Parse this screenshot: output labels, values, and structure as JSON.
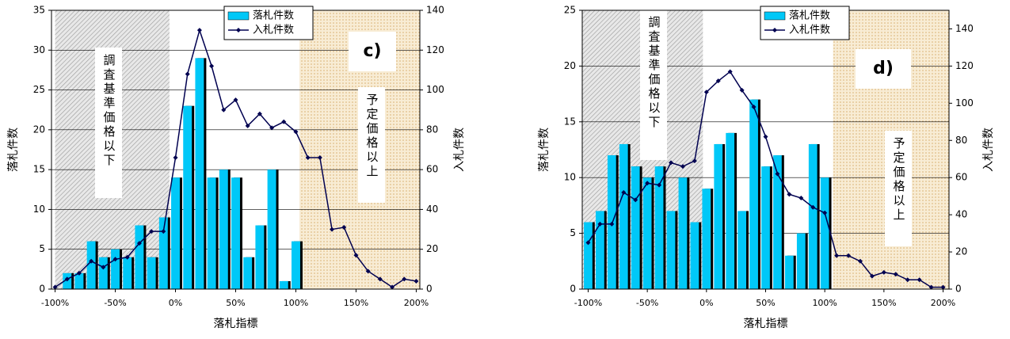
{
  "chart_data": [
    {
      "type": "bar-line",
      "panel_label": "c)",
      "xlabel": "落札指標",
      "ylabel": "落札件数",
      "y2label": "入札件数",
      "x": [
        -100,
        -90,
        -80,
        -70,
        -60,
        -50,
        -40,
        -30,
        -20,
        -10,
        0,
        10,
        20,
        30,
        40,
        50,
        60,
        70,
        80,
        90,
        100,
        110,
        120,
        130,
        140,
        150,
        160,
        170,
        180,
        190,
        200
      ],
      "series": [
        {
          "name": "落札件数",
          "kind": "bar",
          "axis": "y",
          "color": "#00c8f8",
          "values": [
            null,
            2,
            2,
            6,
            4,
            5,
            4,
            8,
            4,
            9,
            14,
            23,
            29,
            14,
            15,
            14,
            4,
            8,
            15,
            1,
            6,
            null,
            null,
            null,
            null,
            null,
            null,
            null,
            null,
            null,
            null
          ]
        },
        {
          "name": "入札件数",
          "kind": "line",
          "axis": "y2",
          "color": "#000050",
          "values": [
            1,
            5,
            8,
            14,
            11,
            15,
            16,
            23,
            29,
            29,
            66,
            108,
            130,
            112,
            90,
            95,
            82,
            88,
            81,
            84,
            79,
            66,
            66,
            30,
            31,
            17,
            9,
            5,
            1,
            5,
            4
          ]
        }
      ],
      "regions": [
        {
          "x": [
            -100,
            -5
          ],
          "label": "調査基準価格以下",
          "pattern": "hatch"
        },
        {
          "x": [
            103,
            203
          ],
          "label": "予定価格以上",
          "pattern": "dots"
        }
      ],
      "xlim": [
        -103,
        203
      ],
      "ylim": [
        0,
        35
      ],
      "y2lim": [
        0,
        140
      ],
      "xticks": [
        {
          "value": -100,
          "label": "-100%"
        },
        {
          "value": -50,
          "label": "-50%"
        },
        {
          "value": 0,
          "label": "0%"
        },
        {
          "value": 50,
          "label": "50%"
        },
        {
          "value": 100,
          "label": "100%"
        },
        {
          "value": 150,
          "label": "150%"
        },
        {
          "value": 200,
          "label": "200%"
        }
      ],
      "yticks": [
        0,
        5,
        10,
        15,
        20,
        25,
        30,
        35
      ],
      "y2ticks": [
        0,
        20,
        40,
        60,
        80,
        100,
        120,
        140
      ],
      "grid": true
    },
    {
      "type": "bar-line",
      "panel_label": "d)",
      "xlabel": "落札指標",
      "ylabel": "落札件数",
      "y2label": "入札件数",
      "x": [
        -100,
        -90,
        -80,
        -70,
        -60,
        -50,
        -40,
        -30,
        -20,
        -10,
        0,
        10,
        20,
        30,
        40,
        50,
        60,
        70,
        80,
        90,
        100,
        110,
        120,
        130,
        140,
        150,
        160,
        170,
        180,
        190,
        200
      ],
      "series": [
        {
          "name": "落札件数",
          "kind": "bar",
          "axis": "y",
          "color": "#00c8f8",
          "values": [
            6,
            7,
            12,
            13,
            11,
            10,
            11,
            7,
            10,
            6,
            9,
            13,
            14,
            7,
            17,
            11,
            12,
            3,
            5,
            13,
            10,
            null,
            null,
            null,
            null,
            null,
            null,
            null,
            null,
            null,
            null
          ]
        },
        {
          "name": "入札件数",
          "kind": "line",
          "axis": "y2",
          "color": "#000050",
          "values": [
            25,
            35,
            35,
            52,
            48,
            57,
            56,
            68,
            66,
            69,
            106,
            112,
            117,
            107,
            98,
            82,
            62,
            51,
            49,
            44,
            41,
            18,
            18,
            15,
            7,
            9,
            8,
            5,
            5,
            1,
            1
          ]
        }
      ],
      "regions": [
        {
          "x": [
            -105,
            -3
          ],
          "label": "調査基準価格以下",
          "pattern": "hatch"
        },
        {
          "x": [
            107,
            205
          ],
          "label": "予定価格以上",
          "pattern": "dots"
        }
      ],
      "xlim": [
        -105,
        205
      ],
      "ylim": [
        0,
        25
      ],
      "y2lim": [
        0,
        150
      ],
      "xticks": [
        {
          "value": -100,
          "label": "-100%"
        },
        {
          "value": -50,
          "label": "-50%"
        },
        {
          "value": 0,
          "label": "0%"
        },
        {
          "value": 50,
          "label": "50%"
        },
        {
          "value": 100,
          "label": "100%"
        },
        {
          "value": 150,
          "label": "150%"
        },
        {
          "value": 200,
          "label": "200%"
        }
      ],
      "yticks": [
        0,
        5,
        10,
        15,
        20,
        25
      ],
      "y2ticks": [
        0,
        20,
        40,
        60,
        80,
        100,
        120,
        140
      ],
      "grid": true
    }
  ]
}
